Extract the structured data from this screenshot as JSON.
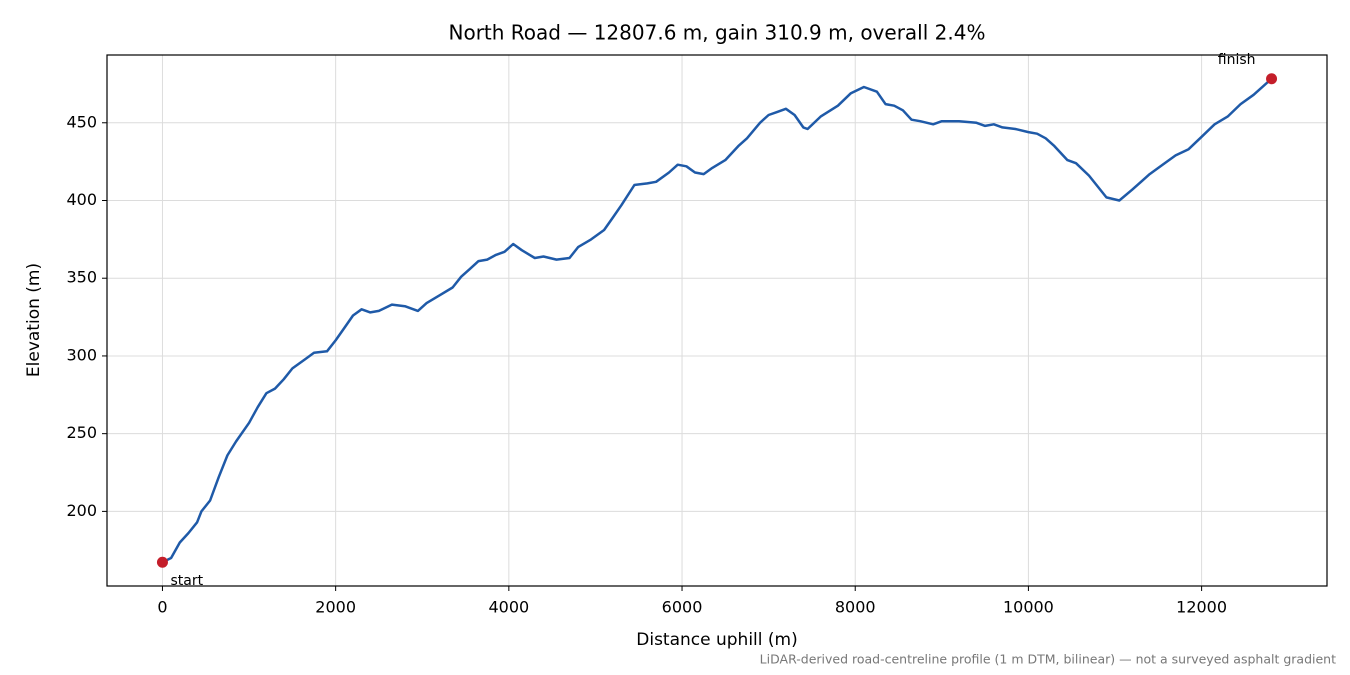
{
  "chart_data": {
    "type": "line",
    "title": "North Road — 12807.6 m, gain 310.9 m, overall 2.4%",
    "xlabel": "Distance uphill (m)",
    "ylabel": "Elevation (m)",
    "footnote": "LiDAR-derived road-centreline profile (1 m DTM, bilinear) — not a surveyed asphalt gradient",
    "x": [
      0,
      100,
      200,
      300,
      400,
      450,
      550,
      650,
      750,
      850,
      1000,
      1100,
      1200,
      1300,
      1400,
      1500,
      1650,
      1750,
      1900,
      2000,
      2100,
      2200,
      2300,
      2400,
      2500,
      2650,
      2800,
      2950,
      3050,
      3200,
      3350,
      3450,
      3550,
      3650,
      3750,
      3850,
      3950,
      4050,
      4150,
      4300,
      4400,
      4550,
      4700,
      4800,
      4950,
      5100,
      5200,
      5300,
      5450,
      5600,
      5700,
      5850,
      5950,
      6050,
      6150,
      6250,
      6350,
      6500,
      6650,
      6750,
      6900,
      7000,
      7100,
      7200,
      7300,
      7400,
      7450,
      7600,
      7800,
      7950,
      8100,
      8250,
      8350,
      8450,
      8550,
      8650,
      8750,
      8900,
      9000,
      9200,
      9400,
      9500,
      9600,
      9700,
      9850,
      10000,
      10100,
      10200,
      10300,
      10450,
      10550,
      10700,
      10800,
      10900,
      11050,
      11200,
      11400,
      11550,
      11700,
      11850,
      12000,
      12150,
      12300,
      12450,
      12600,
      12807.6
    ],
    "values": [
      167.3,
      170,
      180,
      186,
      193,
      200,
      207,
      222,
      236,
      245,
      257,
      267,
      276,
      279,
      285,
      292,
      298,
      302,
      303,
      310,
      318,
      326,
      330,
      328,
      329,
      333,
      332,
      329,
      334,
      339,
      344,
      351,
      356,
      361,
      362,
      365,
      367,
      372,
      368,
      363,
      364,
      362,
      363,
      370,
      375,
      381,
      389,
      397,
      410,
      411,
      412,
      418,
      423,
      422,
      418,
      417,
      421,
      426,
      435,
      440,
      450,
      455,
      457,
      459,
      455,
      447,
      446,
      454,
      461,
      469,
      473,
      470,
      462,
      461,
      458,
      452,
      451,
      449,
      451,
      451,
      450,
      448,
      449,
      447,
      446,
      444,
      443,
      440,
      435,
      426,
      424,
      416,
      409,
      402,
      400,
      407,
      417,
      423,
      429,
      433,
      441,
      449,
      454,
      462,
      468,
      478.3
    ],
    "color": "#1f5aa8",
    "annotations": [
      {
        "text": "start",
        "x": 0,
        "y": 167.3
      },
      {
        "text": "finish",
        "x": 12807.6,
        "y": 478.3
      }
    ],
    "marker_color": "#c41e2a",
    "xlim": [
      -640.4,
      13448
    ],
    "ylim": [
      152,
      493.6
    ],
    "xticks": [
      0,
      2000,
      4000,
      6000,
      8000,
      10000,
      12000
    ],
    "yticks": [
      200,
      250,
      300,
      350,
      400,
      450
    ],
    "grid": true
  }
}
